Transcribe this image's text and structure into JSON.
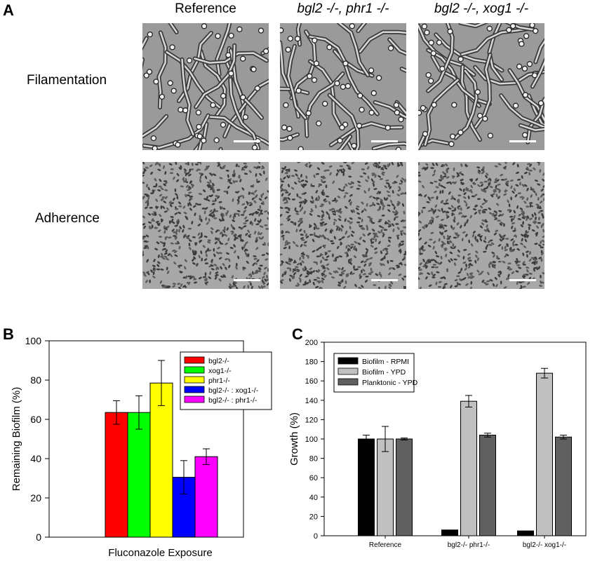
{
  "panel_a": {
    "letter": "A",
    "columns": [
      "Reference",
      "bgl2 -/-, phr1 -/-",
      "bgl2 -/-, xog1 -/-"
    ],
    "rows": [
      "Filamentation",
      "Adherence"
    ]
  },
  "panel_b": {
    "letter": "B"
  },
  "panel_c": {
    "letter": "C"
  },
  "chart_data": [
    {
      "type": "bar",
      "categories": [
        "Fluconazole Exposure"
      ],
      "series": [
        {
          "name": "bgl2-/-",
          "values": [
            63.5
          ],
          "error": [
            6
          ],
          "color": "#ff0000"
        },
        {
          "name": "xog1-/-",
          "values": [
            63.5
          ],
          "error": [
            8.5
          ],
          "color": "#00ff00"
        },
        {
          "name": "phr1-/-",
          "values": [
            78.5
          ],
          "error": [
            11.5
          ],
          "color": "#ffff00"
        },
        {
          "name": "bgl2-/- : xog1-/-",
          "values": [
            30.5
          ],
          "error": [
            8.5
          ],
          "color": "#0000ff"
        },
        {
          "name": "bgl2-/- : phr1-/-",
          "values": [
            41
          ],
          "error": [
            4
          ],
          "color": "#ff00ff"
        }
      ],
      "xlabel": "Fluconazole Exposure",
      "ylabel": "Remaining Biofilm (%)",
      "ylim": [
        0,
        100
      ],
      "yticks": [
        0,
        20,
        40,
        60,
        80,
        100
      ],
      "legend": "top-right",
      "grid": false
    },
    {
      "type": "bar",
      "categories": [
        "Reference",
        "bgl2-/- phr1-/-",
        "bgl2-/- xog1-/-"
      ],
      "series": [
        {
          "name": "Biofilm - RPMI",
          "values": [
            100,
            6,
            5
          ],
          "error": [
            4,
            0,
            0
          ],
          "color": "#000000"
        },
        {
          "name": "Biofilm - YPD",
          "values": [
            100,
            139,
            168
          ],
          "error": [
            13,
            6,
            5
          ],
          "color": "#c0c0c0"
        },
        {
          "name": "Planktonic - YPD",
          "values": [
            100,
            104,
            102
          ],
          "error": [
            1,
            2,
            2
          ],
          "color": "#606060"
        }
      ],
      "xlabel": "",
      "ylabel": "Growth (%)",
      "ylim": [
        0,
        200
      ],
      "yticks": [
        0,
        20,
        40,
        60,
        80,
        100,
        120,
        140,
        160,
        180,
        200
      ],
      "legend": "top-left",
      "grid": false
    }
  ]
}
